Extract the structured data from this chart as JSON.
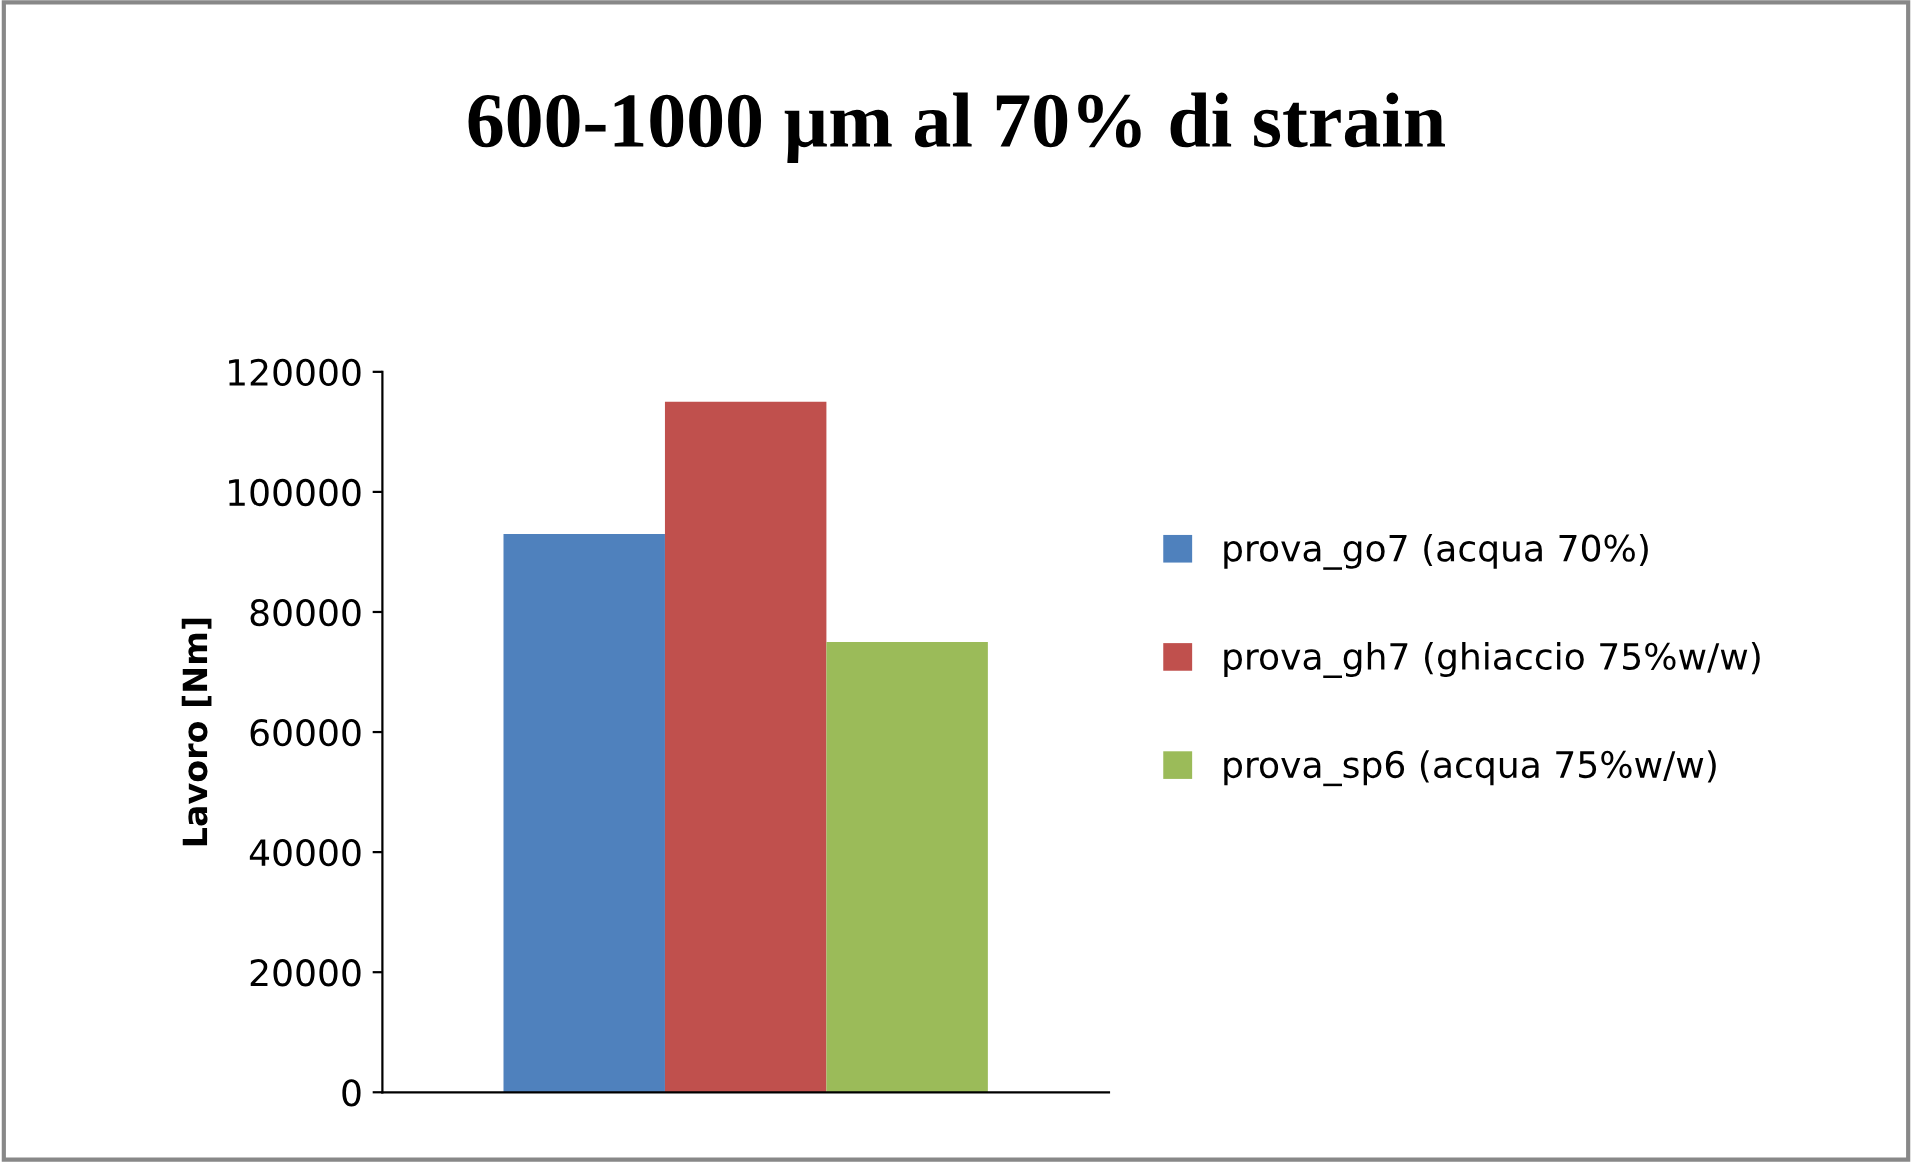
{
  "chart_data": {
    "type": "bar",
    "title": "600-1000 µm al 70% di strain",
    "ylabel": "Lavoro [Nm]",
    "categories": [
      null
    ],
    "series": [
      {
        "name": "prova_go7 (acqua 70%)",
        "color": "#4f81bd",
        "values": [
          93000
        ]
      },
      {
        "name": "prova_gh7 (ghiaccio 75%w/w)",
        "color": "#c0504d",
        "values": [
          115000
        ]
      },
      {
        "name": "prova_sp6 (acqua 75%w/w)",
        "color": "#9bbb59",
        "values": [
          75000
        ]
      }
    ],
    "ylim": [
      0,
      120000
    ],
    "yticks": [
      0,
      20000,
      40000,
      60000,
      80000,
      100000,
      120000
    ],
    "grid": false,
    "legend": "right"
  }
}
